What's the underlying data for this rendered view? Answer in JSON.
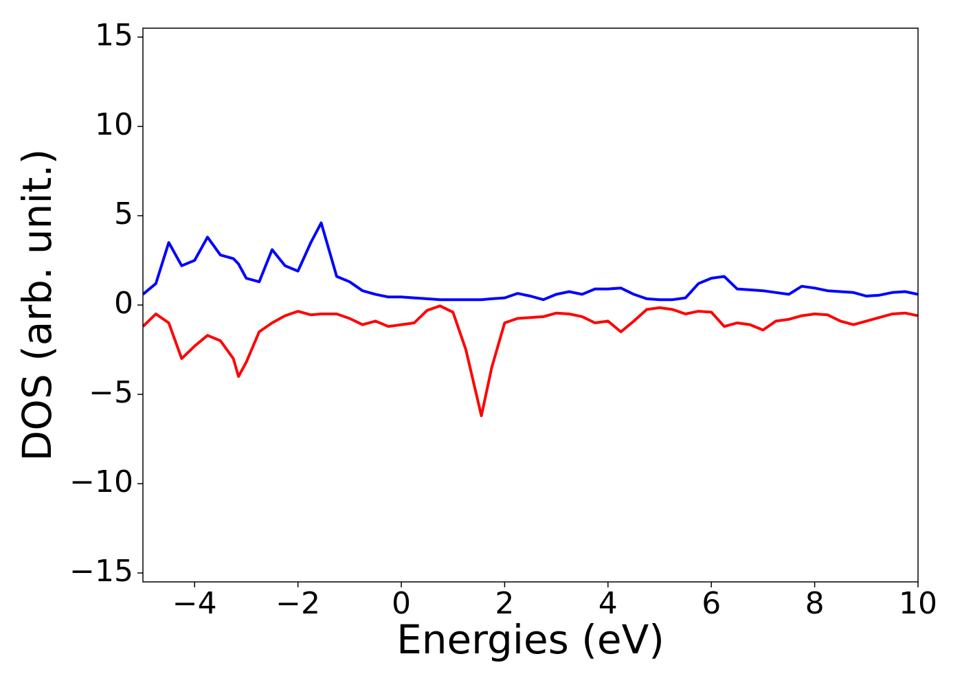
{
  "chart_data": {
    "type": "line",
    "xlabel": "Energies (eV)",
    "ylabel": "DOS (arb. unit.)",
    "x": [
      -5,
      -4.75,
      -4.5,
      -4.25,
      -4,
      -3.75,
      -3.5,
      -3.25,
      -3.15,
      -3,
      -2.75,
      -2.5,
      -2.25,
      -2,
      -1.75,
      -1.55,
      -1.25,
      -1,
      -0.75,
      -0.5,
      -0.25,
      0,
      0.25,
      0.5,
      0.75,
      1,
      1.25,
      1.55,
      1.75,
      2,
      2.25,
      2.5,
      2.75,
      3,
      3.25,
      3.5,
      3.75,
      4,
      4.25,
      4.5,
      4.75,
      5,
      5.25,
      5.5,
      5.75,
      6,
      6.25,
      6.5,
      6.75,
      7,
      7.25,
      7.5,
      7.75,
      8,
      8.25,
      8.5,
      8.75,
      9,
      9.25,
      9.5,
      9.75,
      10
    ],
    "series": [
      {
        "color": "#0000ff",
        "values": [
          0.6,
          1.2,
          3.5,
          2.2,
          2.5,
          3.8,
          2.8,
          2.6,
          2.3,
          1.5,
          1.3,
          3.1,
          2.2,
          1.9,
          3.5,
          4.6,
          1.6,
          1.3,
          0.8,
          0.6,
          0.45,
          0.45,
          0.4,
          0.35,
          0.3,
          0.3,
          0.3,
          0.3,
          0.35,
          0.4,
          0.65,
          0.5,
          0.3,
          0.6,
          0.75,
          0.6,
          0.9,
          0.9,
          0.95,
          0.6,
          0.35,
          0.3,
          0.3,
          0.4,
          1.2,
          1.5,
          1.6,
          0.9,
          0.85,
          0.8,
          0.7,
          0.6,
          1.05,
          0.95,
          0.8,
          0.75,
          0.7,
          0.5,
          0.55,
          0.7,
          0.75,
          0.6
        ]
      },
      {
        "color": "#ff0000",
        "values": [
          -1.2,
          -0.5,
          -1.0,
          -3.0,
          -2.3,
          -1.7,
          -2.0,
          -3.0,
          -4.0,
          -3.2,
          -1.5,
          -1.0,
          -0.6,
          -0.35,
          -0.55,
          -0.5,
          -0.5,
          -0.75,
          -1.1,
          -0.9,
          -1.2,
          -1.1,
          -1.0,
          -0.3,
          -0.05,
          -0.4,
          -2.5,
          -6.2,
          -3.5,
          -1.0,
          -0.75,
          -0.7,
          -0.65,
          -0.45,
          -0.5,
          -0.65,
          -1.0,
          -0.9,
          -1.5,
          -0.9,
          -0.25,
          -0.15,
          -0.25,
          -0.5,
          -0.35,
          -0.4,
          -1.2,
          -1.0,
          -1.1,
          -1.4,
          -0.9,
          -0.8,
          -0.6,
          -0.5,
          -0.55,
          -0.9,
          -1.1,
          -0.9,
          -0.7,
          -0.5,
          -0.45,
          -0.6
        ]
      }
    ],
    "xlim": [
      -5,
      10
    ],
    "xticks": [
      {
        "value": -4,
        "label": "−4"
      },
      {
        "value": -2,
        "label": "−2"
      },
      0,
      2,
      4,
      6,
      8,
      10
    ],
    "ylim": [
      -15.5,
      15.5
    ],
    "yticks": [
      {
        "value": -15,
        "label": "−15"
      },
      {
        "value": -10,
        "label": "−10"
      },
      {
        "value": -5,
        "label": "−5"
      },
      0,
      5,
      10,
      15
    ],
    "grid": false
  }
}
